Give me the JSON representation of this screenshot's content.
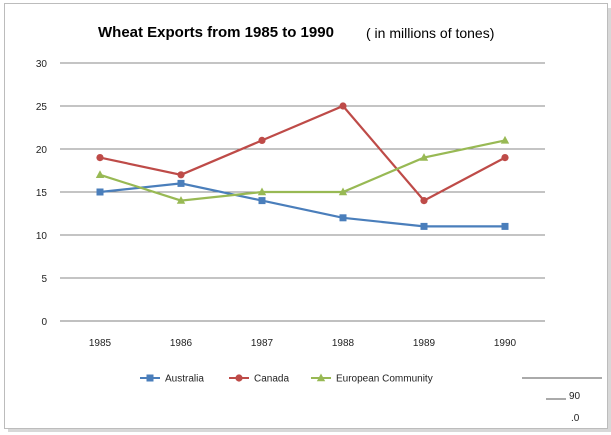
{
  "chart_data": {
    "type": "line",
    "title": "Wheat Exports from 1985 to 1990",
    "subtitle": "( in millions of tones)",
    "xlabel": "",
    "ylabel": "",
    "categories": [
      "1985",
      "1986",
      "1987",
      "1988",
      "1989",
      "1990"
    ],
    "ylim": [
      0,
      30
    ],
    "yticks": [
      0,
      5,
      10,
      15,
      20,
      25,
      30
    ],
    "grid": true,
    "legend_position": "bottom",
    "series": [
      {
        "name": "Australia",
        "values": [
          15,
          16,
          14,
          12,
          11,
          11
        ],
        "color": "#4a7ebb",
        "marker": "square"
      },
      {
        "name": "Canada",
        "values": [
          19,
          17,
          21,
          25,
          14,
          19
        ],
        "color": "#be4b48",
        "marker": "circle"
      },
      {
        "name": "European Community",
        "values": [
          17,
          14,
          15,
          15,
          19,
          21
        ],
        "color": "#98b954",
        "marker": "triangle"
      }
    ]
  },
  "fragment_text": {
    "a": "90",
    "b": ".0"
  }
}
